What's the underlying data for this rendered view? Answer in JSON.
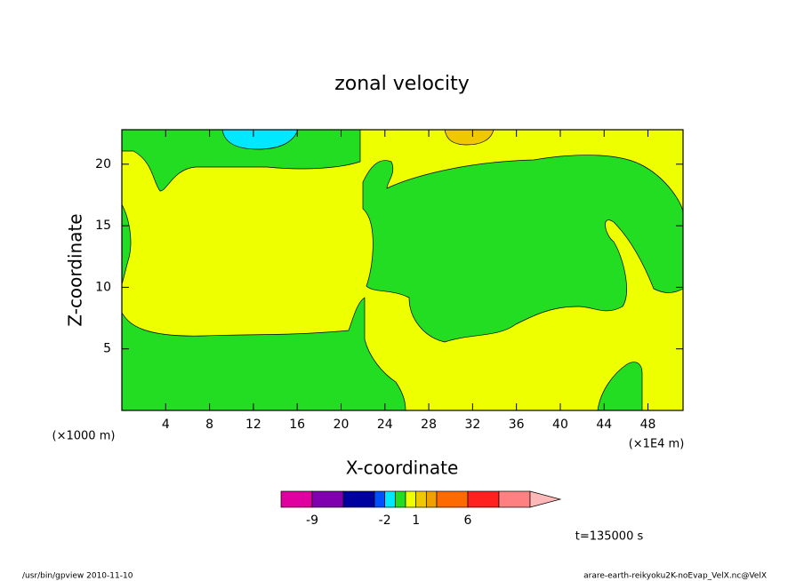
{
  "chart_data": {
    "type": "contour",
    "title": "zonal velocity",
    "xlabel": "X-coordinate",
    "ylabel": "Z-coordinate",
    "xunit": "(×1E4 m)",
    "yunit": "(×1000 m)",
    "xlim": [
      0,
      51.2
    ],
    "ylim": [
      0,
      22.8
    ],
    "xticks": [
      4,
      8,
      12,
      16,
      20,
      24,
      28,
      32,
      36,
      40,
      44,
      48
    ],
    "yticks": [
      5,
      10,
      15,
      20
    ],
    "colorbar": {
      "levels": [
        -12,
        -9,
        -6,
        -3,
        -2,
        -1,
        0,
        1,
        2,
        3,
        6,
        9,
        12
      ],
      "colors": [
        "#e000a0",
        "#8000b0",
        "#0000a0",
        "#0050ff",
        "#00e8ff",
        "#22dd22",
        "#eeff00",
        "#f0c800",
        "#f0a000",
        "#ff6a00",
        "#ff2020",
        "#ff8080"
      ],
      "extend_color": "#ffb8b8",
      "ticks": [
        -9,
        -2,
        1,
        6
      ]
    },
    "annotation": "t=135000 s",
    "footer_left": "/usr/bin/gpview  2010-11-10",
    "footer_right": "arare-earth-reikyoku2K-noEvap_VelX.nc@VelX"
  }
}
